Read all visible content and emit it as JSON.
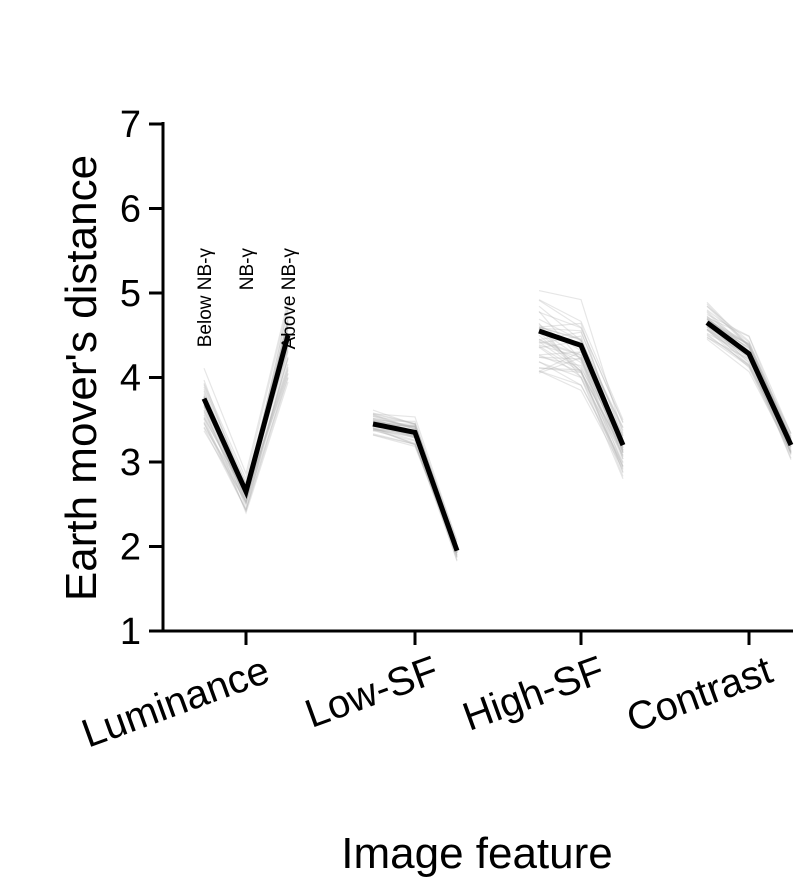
{
  "chart_data": {
    "type": "line",
    "xlabel": "Image feature",
    "ylabel": "Earth mover's distance",
    "ylim": [
      1,
      7
    ],
    "yticks": [
      1,
      2,
      3,
      4,
      5,
      6,
      7
    ],
    "categories": [
      "Luminance",
      "Low-SF",
      "High-SF",
      "Contrast"
    ],
    "conditions": [
      "Below NB-γ",
      "NB-γ",
      "Above NB-γ"
    ],
    "groups": [
      {
        "category": "Luminance",
        "mean": [
          3.75,
          2.65,
          4.5
        ],
        "spread": [
          0.45,
          0.3,
          0.65
        ]
      },
      {
        "category": "Low-SF",
        "mean": [
          3.45,
          3.35,
          1.95
        ],
        "spread": [
          0.2,
          0.25,
          0.15
        ]
      },
      {
        "category": "High-SF",
        "mean": [
          4.55,
          4.38,
          3.2
        ],
        "spread": [
          0.6,
          0.6,
          0.4
        ]
      },
      {
        "category": "Contrast",
        "mean": [
          4.65,
          4.28,
          3.2
        ],
        "spread": [
          0.25,
          0.25,
          0.2
        ]
      }
    ],
    "colors": {
      "mean_line": "#000000",
      "individual_lines": "#b8b8b8",
      "axis": "#000000"
    },
    "grid": false,
    "legend": "none"
  }
}
